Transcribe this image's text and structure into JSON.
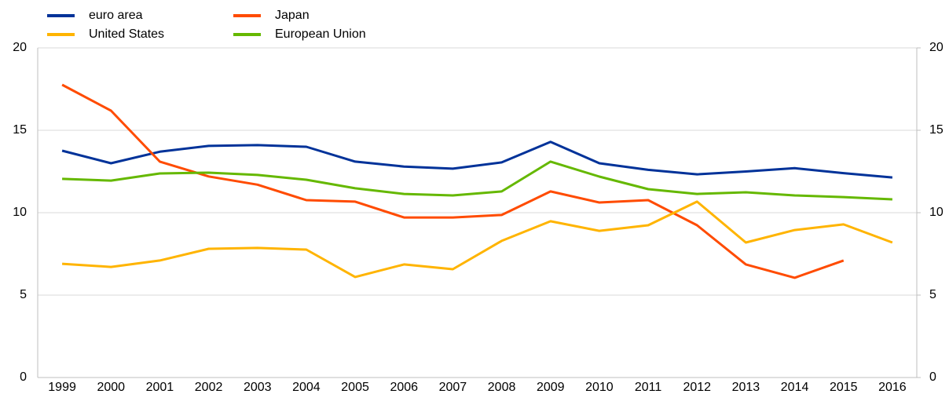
{
  "chart_data": {
    "type": "line",
    "categories": [
      "1999",
      "2000",
      "2001",
      "2002",
      "2003",
      "2004",
      "2005",
      "2006",
      "2007",
      "2008",
      "2009",
      "2010",
      "2011",
      "2012",
      "2013",
      "2014",
      "2015",
      "2016"
    ],
    "series": [
      {
        "name": "euro area",
        "color": "#003299",
        "values": [
          13.76,
          13.0,
          13.7,
          14.05,
          14.1,
          14.0,
          13.1,
          12.8,
          12.67,
          13.05,
          14.3,
          13.0,
          12.6,
          12.33,
          12.5,
          12.7,
          12.4,
          12.14
        ]
      },
      {
        "name": "Japan",
        "color": "#ff4b00",
        "values": [
          17.76,
          16.19,
          13.1,
          12.2,
          11.7,
          10.76,
          10.67,
          9.71,
          9.71,
          9.86,
          11.29,
          10.62,
          10.76,
          9.24,
          6.86,
          6.05,
          7.1,
          null
        ]
      },
      {
        "name": "United States",
        "color": "#ffb400",
        "values": [
          6.9,
          6.71,
          7.1,
          7.81,
          7.86,
          7.76,
          6.1,
          6.86,
          6.57,
          8.29,
          9.48,
          8.9,
          9.24,
          10.67,
          8.19,
          8.95,
          9.29,
          8.19
        ]
      },
      {
        "name": "European Union",
        "color": "#65b800",
        "values": [
          12.05,
          11.95,
          12.38,
          12.43,
          12.29,
          12.0,
          11.48,
          11.14,
          11.05,
          11.29,
          13.1,
          12.19,
          11.43,
          11.14,
          11.24,
          11.05,
          10.95,
          10.81
        ]
      }
    ],
    "ylim": [
      0,
      20
    ],
    "yticks": [
      0,
      5,
      10,
      15,
      20
    ],
    "y2lim": [
      0,
      20
    ],
    "y2ticks": [
      0,
      5,
      10,
      15,
      20
    ],
    "grid": true
  }
}
